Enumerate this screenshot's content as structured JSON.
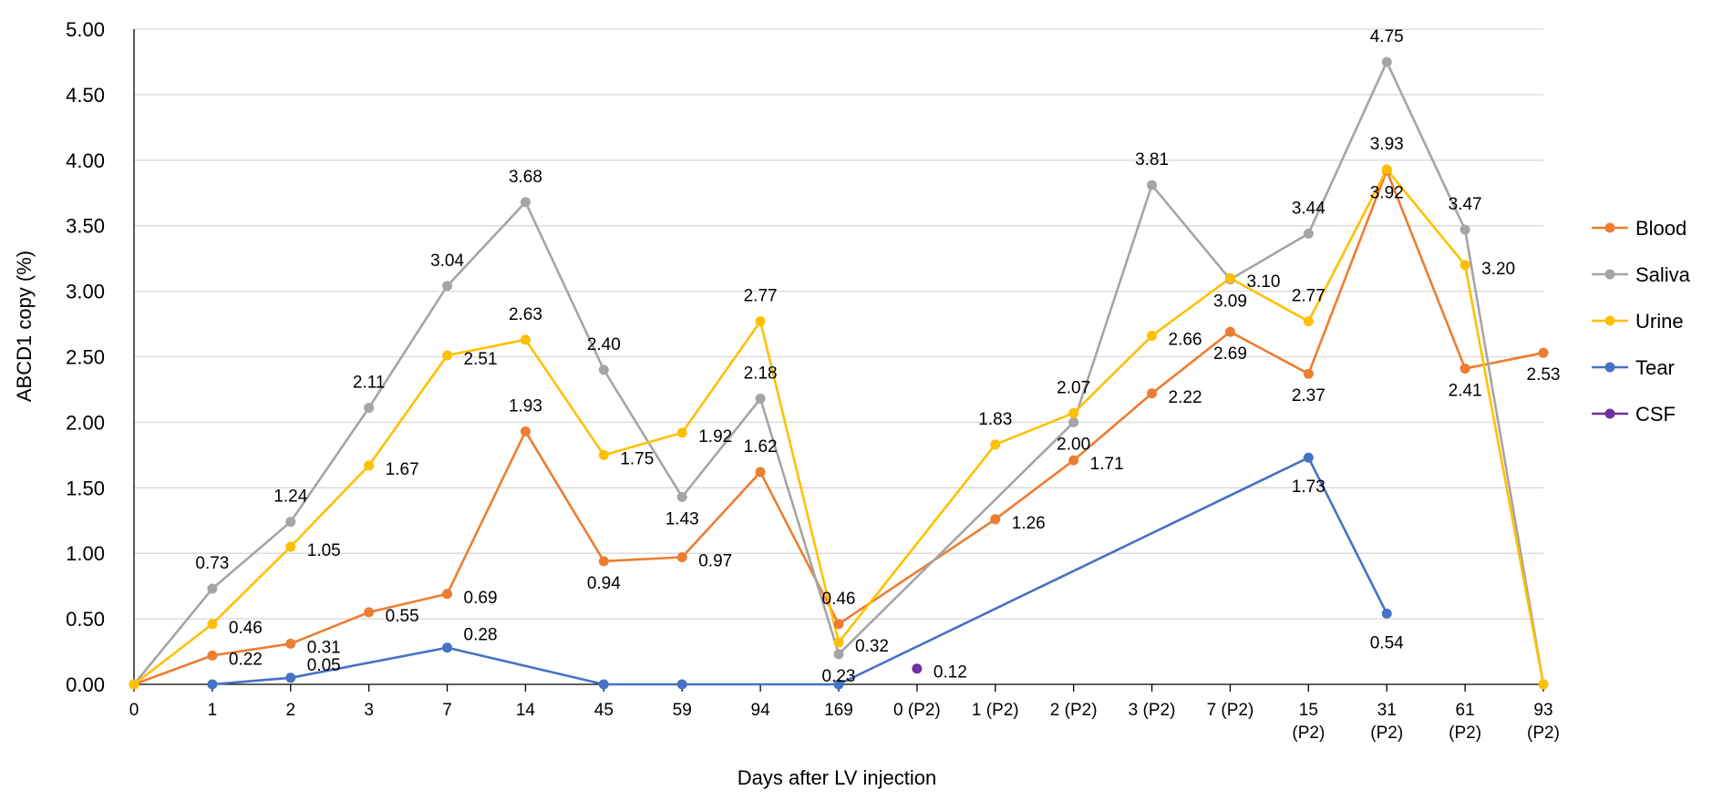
{
  "chart_data": {
    "type": "line",
    "title": "",
    "xlabel": "Days after LV injection",
    "ylabel": "ABCD1 copy (%)",
    "ylim": [
      0,
      5
    ],
    "y_ticks": [
      "0.00",
      "0.50",
      "1.00",
      "1.50",
      "2.00",
      "2.50",
      "3.00",
      "3.50",
      "4.00",
      "4.50",
      "5.00"
    ],
    "categories": [
      "0",
      "1",
      "2",
      "3",
      "7",
      "14",
      "45",
      "59",
      "94",
      "169",
      "0 (P2)",
      "1 (P2)",
      "2 (P2)",
      "3 (P2)",
      "7 (P2)",
      "15\n(P2)",
      "31\n(P2)",
      "61\n(P2)",
      "93\n(P2)"
    ],
    "grid": true,
    "legend_position": "right",
    "series": [
      {
        "name": "Blood",
        "color": "#ED7D31",
        "values": [
          0,
          0.22,
          0.31,
          0.55,
          0.69,
          1.93,
          0.94,
          0.97,
          1.62,
          0.46,
          null,
          1.26,
          1.71,
          2.22,
          2.69,
          2.37,
          3.92,
          2.41,
          2.53
        ],
        "labels": [
          "",
          "0.22",
          "0.31",
          "0.55",
          "0.69",
          "1.93",
          "0.94",
          "0.97",
          "1.62",
          "0.46",
          "",
          "1.26",
          "1.71",
          "2.22",
          "2.69",
          "2.37",
          "3.92",
          "2.41",
          "2.53"
        ]
      },
      {
        "name": "Saliva",
        "color": "#A5A5A5",
        "values": [
          0,
          0.73,
          1.24,
          2.11,
          3.04,
          3.68,
          2.4,
          1.43,
          2.18,
          0.23,
          null,
          null,
          2.0,
          3.81,
          3.09,
          3.44,
          4.75,
          3.47,
          0
        ],
        "labels": [
          "",
          "0.73",
          "1.24",
          "2.11",
          "3.04",
          "3.68",
          "2.40",
          "1.43",
          "2.18",
          "0.23",
          "",
          "",
          "2.00",
          "3.81",
          "3.09",
          "3.44",
          "4.75",
          "3.47",
          ""
        ]
      },
      {
        "name": "Urine",
        "color": "#FFC000",
        "values": [
          0,
          0.46,
          1.05,
          1.67,
          2.51,
          2.63,
          1.75,
          1.92,
          2.77,
          0.32,
          null,
          1.83,
          2.07,
          2.66,
          3.1,
          2.77,
          3.93,
          3.2,
          0
        ],
        "labels": [
          "",
          "0.46",
          "1.05",
          "1.67",
          "2.51",
          "2.63",
          "1.75",
          "1.92",
          "2.77",
          "0.32",
          "",
          "1.83",
          "2.07",
          "2.66",
          "3.10",
          "2.77",
          "3.93",
          "3.20",
          ""
        ]
      },
      {
        "name": "Tear",
        "color": "#4472C4",
        "values": [
          null,
          0,
          0.05,
          null,
          0.28,
          null,
          0,
          0,
          null,
          0,
          null,
          null,
          null,
          null,
          null,
          1.73,
          0.54,
          null,
          null
        ],
        "labels": [
          "",
          "",
          "0.05",
          "",
          "0.28",
          "",
          "",
          "",
          "",
          "",
          "",
          "",
          "",
          "",
          "",
          "1.73",
          "0.54",
          "",
          ""
        ]
      },
      {
        "name": "CSF",
        "color": "#7030A0",
        "values": [
          null,
          null,
          null,
          null,
          null,
          null,
          null,
          null,
          null,
          null,
          0.12,
          null,
          null,
          null,
          null,
          null,
          null,
          null,
          null
        ],
        "labels": [
          "",
          "",
          "",
          "",
          "",
          "",
          "",
          "",
          "",
          "",
          "0.12",
          "",
          "",
          "",
          "",
          "",
          "",
          "",
          ""
        ]
      }
    ]
  }
}
